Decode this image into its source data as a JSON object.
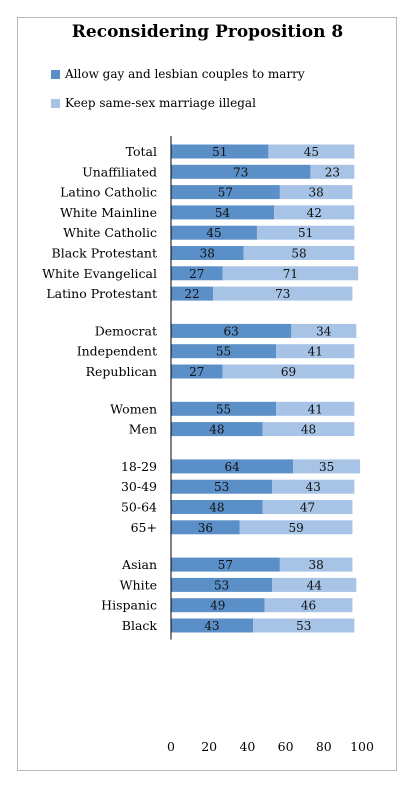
{
  "chart_data": {
    "type": "bar",
    "stacked": true,
    "orientation": "horizontal",
    "title": "Reconsidering Proposition 8",
    "categories": [
      "Total",
      "Unaffiliated",
      "Latino Catholic",
      "White Mainline",
      "White Catholic",
      "Black Protestant",
      "White Evangelical",
      "Latino Protestant",
      "Democrat",
      "Independent",
      "Republican",
      "Women",
      "Men",
      "18-29",
      "30-49",
      "50-64",
      "65+",
      "Asian",
      "White",
      "Hispanic",
      "Black"
    ],
    "groups": [
      [
        0,
        1,
        2,
        3,
        4,
        5,
        6,
        7
      ],
      [
        8,
        9,
        10
      ],
      [
        11,
        12
      ],
      [
        13,
        14,
        15,
        16
      ],
      [
        17,
        18,
        19,
        20
      ]
    ],
    "series": [
      {
        "name": "Allow gay and lesbian couples to marry",
        "color": "#5b8fc8",
        "values": [
          51,
          73,
          57,
          54,
          45,
          38,
          27,
          22,
          63,
          55,
          27,
          55,
          48,
          64,
          53,
          48,
          36,
          57,
          53,
          49,
          43
        ]
      },
      {
        "name": "Keep same-sex marriage illegal",
        "color": "#a7c3e6",
        "values": [
          45,
          23,
          38,
          42,
          51,
          58,
          71,
          73,
          34,
          41,
          69,
          41,
          48,
          35,
          43,
          47,
          59,
          38,
          44,
          46,
          53
        ]
      }
    ],
    "xlim": [
      0,
      100
    ],
    "xticks": [
      "0",
      "20",
      "40",
      "60",
      "80",
      "100"
    ],
    "grid": false,
    "legend_position": "top-left"
  }
}
